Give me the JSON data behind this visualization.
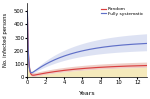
{
  "title": "",
  "xlabel": "Years",
  "ylabel": "No. infected persons",
  "xlim": [
    0,
    13
  ],
  "ylim": [
    0,
    560
  ],
  "yticks": [
    0,
    100,
    200,
    300,
    400,
    500
  ],
  "xticks": [
    0,
    2,
    4,
    6,
    8,
    10,
    12
  ],
  "legend_labels": [
    "Random",
    "Fully systematic"
  ],
  "red_color": "#d94040",
  "blue_color": "#6070c8",
  "red_fill": "#e0a090",
  "blue_fill": "#a8b4e0",
  "yellow_fill": "#f0e098",
  "background": "#ffffff"
}
